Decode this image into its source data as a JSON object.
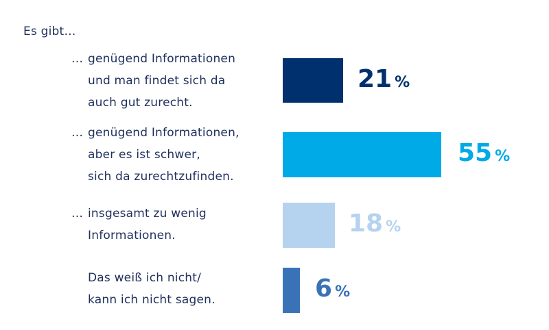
{
  "chart_data": {
    "type": "bar",
    "orientation": "horizontal",
    "intro": "Es gibt…",
    "categories": [
      "…genügend Informationen und man findet sich da auch gut zurecht.",
      "…genügend Informationen, aber es ist schwer, sich da zurechtzufinden.",
      "…insgesamt zu wenig Informationen.",
      "Das weiß ich nicht/ kann ich nicht sagen."
    ],
    "category_lines": [
      [
        "…",
        "genügend Informationen",
        "und man findet sich da",
        "auch gut zurecht."
      ],
      [
        "…",
        "genügend Informationen,",
        "aber es ist schwer,",
        "sich da zurechtzufinden."
      ],
      [
        "…",
        "insgesamt zu wenig",
        "Informationen."
      ],
      [
        "",
        "Das weiß ich nicht/",
        "kann ich nicht sagen."
      ]
    ],
    "values": [
      21,
      55,
      18,
      6
    ],
    "unit": "%",
    "colors": [
      "#00306e",
      "#00aae6",
      "#b5d3ef",
      "#3a72b8"
    ],
    "value_colors": [
      "#00306e",
      "#00aae6",
      "#b5d3ef",
      "#3a72b8"
    ]
  }
}
